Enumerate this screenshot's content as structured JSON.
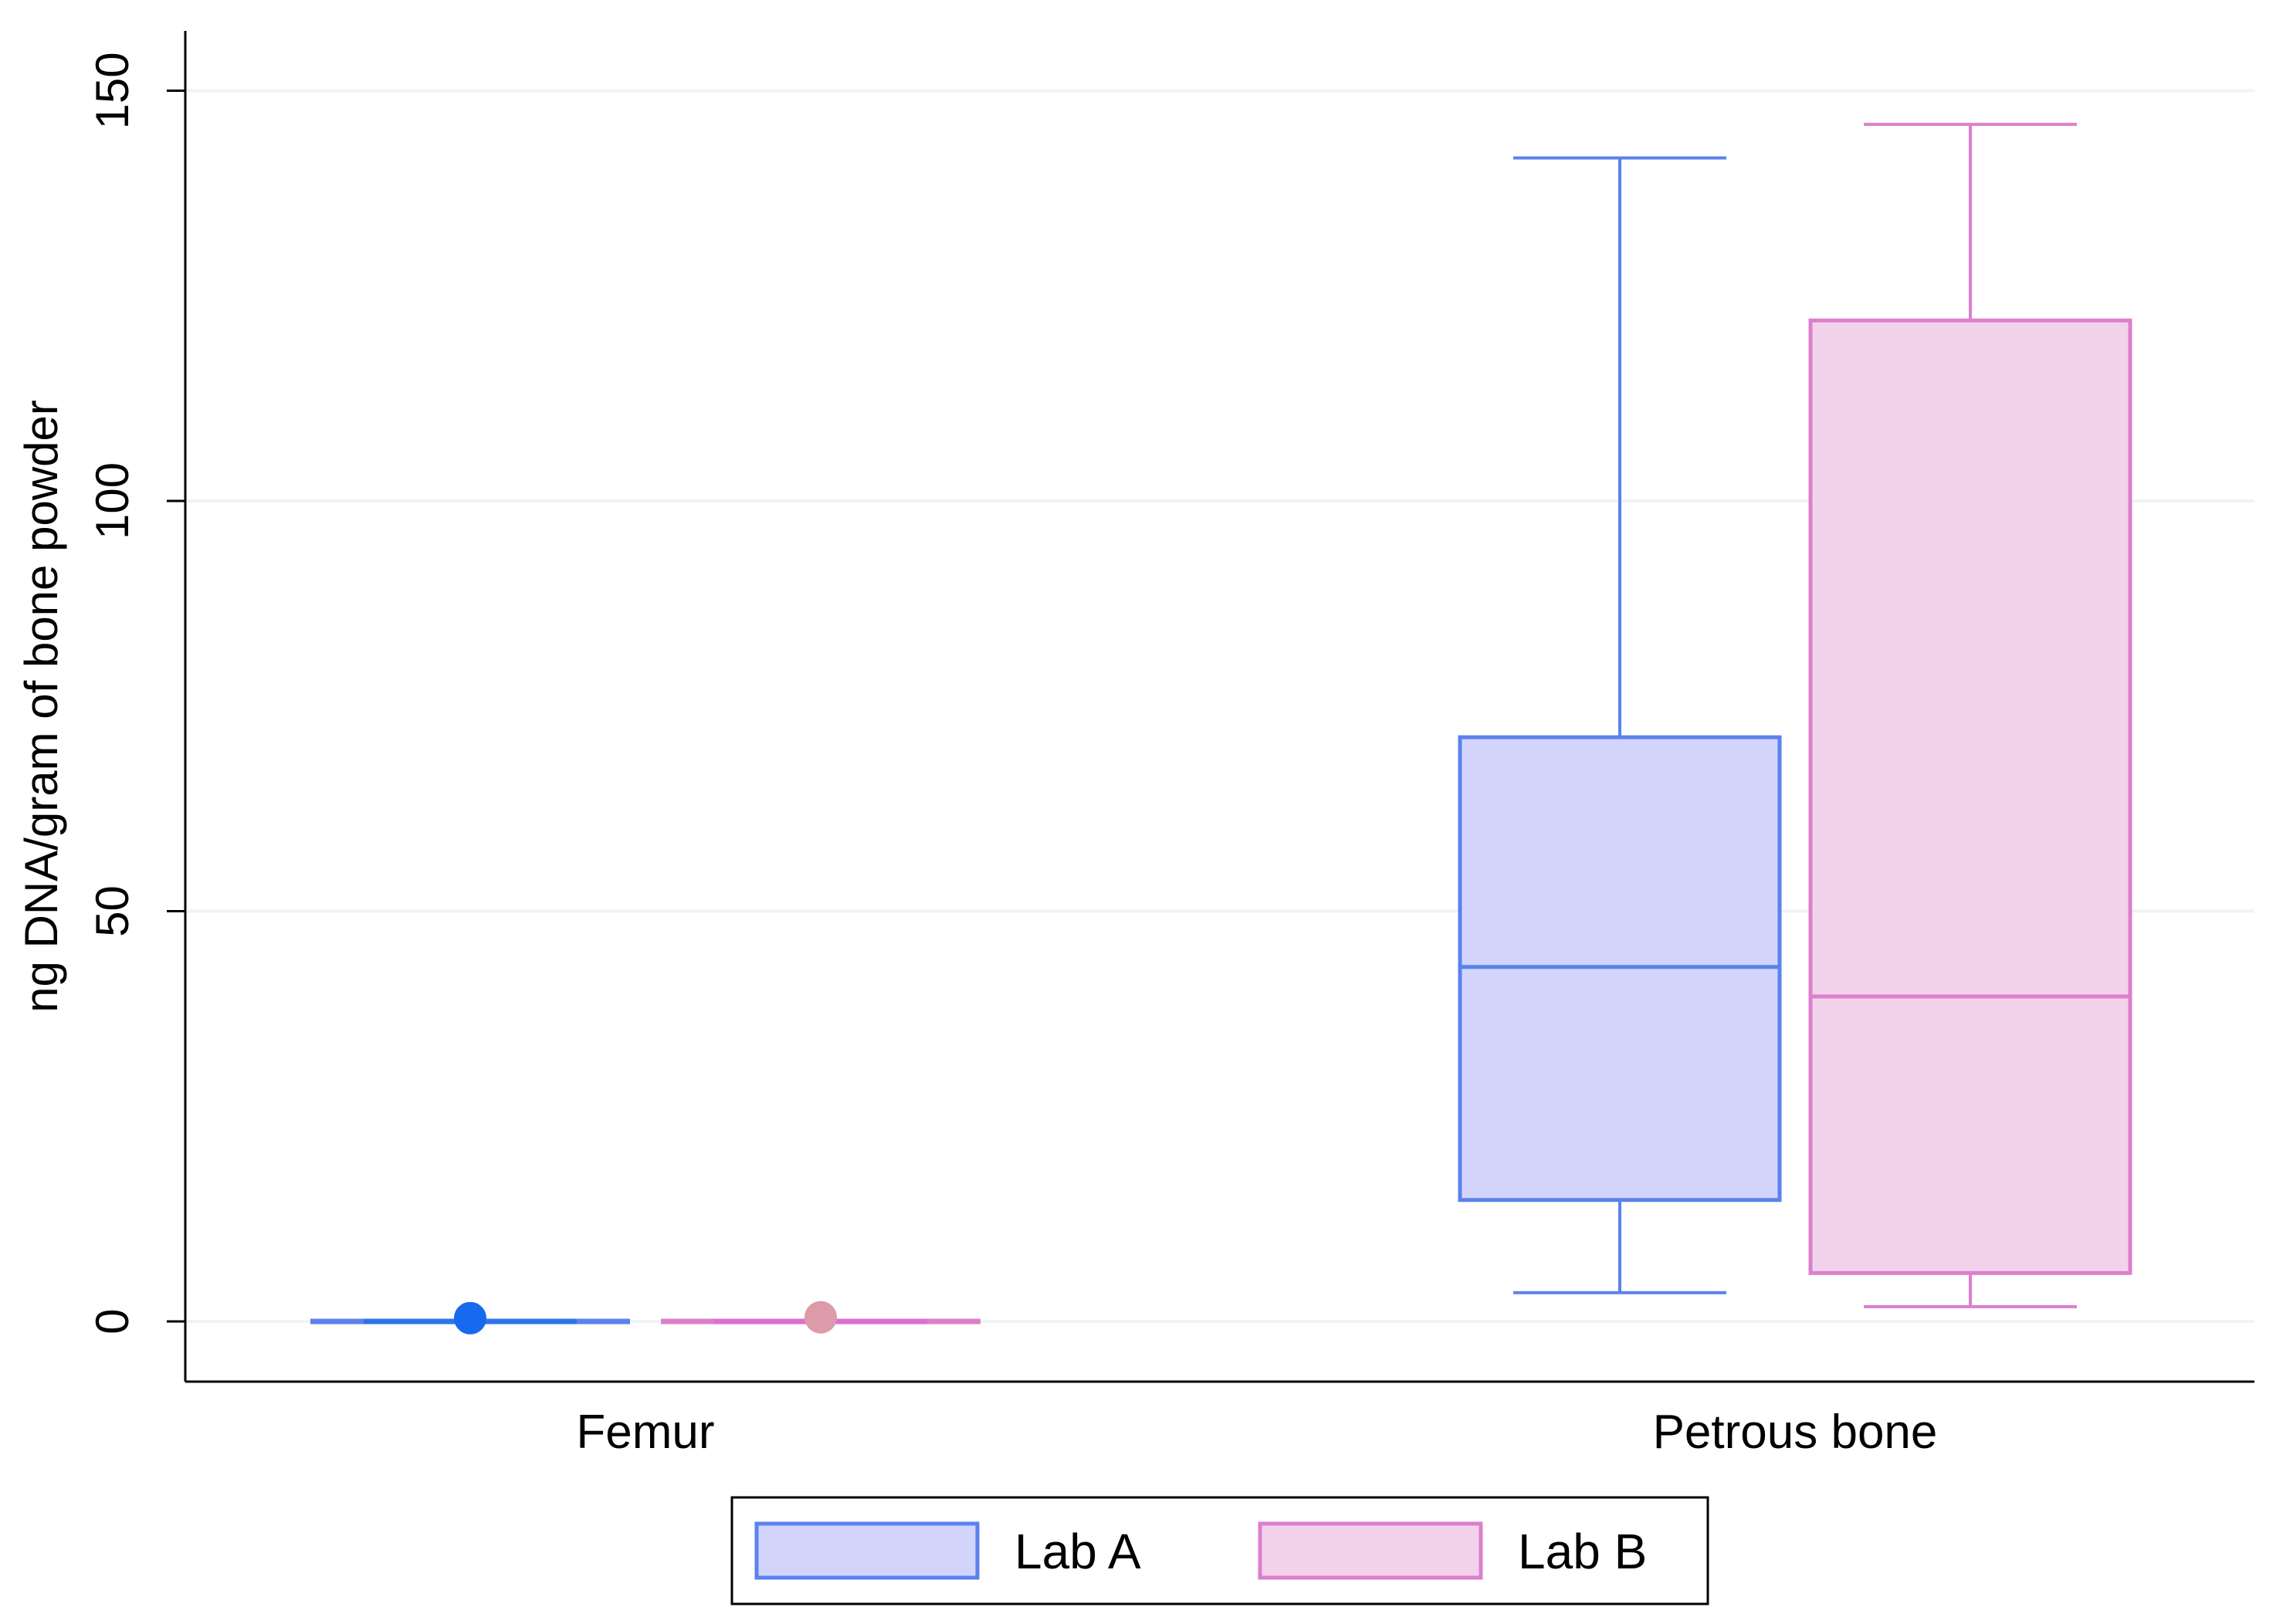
{
  "chart_data": {
    "type": "box",
    "title": "",
    "xlabel": "",
    "ylabel": "ng DNA/gram of bone powder",
    "ylim": [
      -7,
      157
    ],
    "yticks": [
      0,
      50,
      100,
      150
    ],
    "grid": true,
    "legend_position": "bottom-center",
    "categories": [
      "Femur",
      "Petrous bone"
    ],
    "series": [
      {
        "name": "Lab A",
        "stroke": "#5b82ec",
        "fill": "#d2d4fb",
        "boxes": [
          {
            "category": "Femur",
            "whisker_low": 0,
            "q1": 0,
            "median": 0,
            "q3": 0,
            "whisker_high": 0,
            "outliers": [
              0.4
            ]
          },
          {
            "category": "Petrous bone",
            "whisker_low": 3.5,
            "q1": 14.8,
            "median": 43.2,
            "q3": 71.2,
            "whisker_high": 141.8,
            "outliers": []
          }
        ]
      },
      {
        "name": "Lab B",
        "stroke": "#dc7fcc",
        "fill": "#f3d2eb",
        "boxes": [
          {
            "category": "Femur",
            "whisker_low": 0,
            "q1": 0,
            "median": 0,
            "q3": 0,
            "whisker_high": 0,
            "outliers": [
              0.5
            ]
          },
          {
            "category": "Petrous bone",
            "whisker_low": 1.8,
            "q1": 5.9,
            "median": 39.6,
            "q3": 122.0,
            "whisker_high": 145.9,
            "outliers": []
          }
        ]
      }
    ],
    "colors": {
      "femur_lab_a_marker": "#1769ee",
      "femur_lab_a_line": "#2f73ec",
      "femur_lab_b_marker": "#dd9aa8",
      "femur_lab_b_line": "#dd6fcf",
      "grid": "#eef4f6",
      "axis": "#000000"
    }
  }
}
